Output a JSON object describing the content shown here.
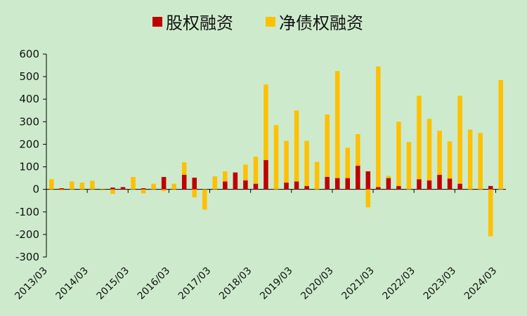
{
  "chart_data": {
    "type": "bar",
    "stacked": true,
    "legend_position": "top",
    "grid": false,
    "ylim": [
      -300,
      600
    ],
    "yticks": [
      -300,
      -200,
      -100,
      0,
      100,
      200,
      300,
      400,
      500,
      600
    ],
    "x_tick_labels": [
      "2013/03",
      "2014/03",
      "2015/03",
      "2016/03",
      "2017/03",
      "2018/03",
      "2019/03",
      "2020/03",
      "2021/03",
      "2022/03",
      "2023/03",
      "2024/03"
    ],
    "categories": [
      "2013/03",
      "2013/06",
      "2013/09",
      "2013/12",
      "2014/03",
      "2014/06",
      "2014/09",
      "2014/12",
      "2015/03",
      "2015/06",
      "2015/09",
      "2015/12",
      "2016/03",
      "2016/06",
      "2016/09",
      "2016/12",
      "2017/03",
      "2017/06",
      "2017/09",
      "2017/12",
      "2018/03",
      "2018/06",
      "2018/09",
      "2018/12",
      "2019/03",
      "2019/06",
      "2019/09",
      "2019/12",
      "2020/03",
      "2020/06",
      "2020/09",
      "2020/12",
      "2021/03",
      "2021/06",
      "2021/09",
      "2021/12",
      "2022/03",
      "2022/06",
      "2022/09",
      "2022/12",
      "2023/03",
      "2023/06",
      "2023/09",
      "2023/12",
      "2024/03"
    ],
    "series": [
      {
        "name": "股权融资",
        "color": "#c00000",
        "values": [
          0,
          5,
          0,
          0,
          0,
          0,
          8,
          10,
          0,
          5,
          0,
          55,
          0,
          65,
          52,
          0,
          0,
          35,
          75,
          40,
          25,
          130,
          0,
          30,
          35,
          15,
          0,
          55,
          50,
          50,
          105,
          80,
          10,
          50,
          15,
          0,
          45,
          40,
          65,
          48,
          25,
          0,
          0,
          15,
          0
        ]
      },
      {
        "name": "净债权融资",
        "color": "#ffc000",
        "values": [
          45,
          -5,
          35,
          30,
          38,
          -5,
          -20,
          0,
          55,
          -18,
          25,
          -8,
          25,
          55,
          -35,
          -90,
          58,
          45,
          0,
          70,
          120,
          335,
          285,
          185,
          315,
          200,
          122,
          277,
          475,
          135,
          140,
          -80,
          535,
          10,
          285,
          210,
          370,
          273,
          195,
          165,
          390,
          265,
          250,
          -208,
          485
        ]
      }
    ]
  }
}
